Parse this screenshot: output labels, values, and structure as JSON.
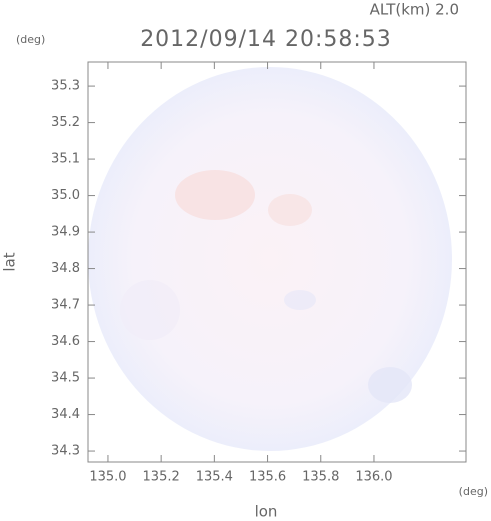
{
  "chart_data": {
    "type": "radar-map",
    "title": "2012/09/14 20:58:53",
    "altitude": "ALT(km) 2.0",
    "x_label": "lon",
    "y_label": "lat",
    "x_unit": "(deg)",
    "y_unit": "(deg)",
    "xlim": [
      134.925,
      136.346
    ],
    "ylim": [
      34.27,
      35.366
    ],
    "xticks": [
      {
        "value": 135.0,
        "label": "135.0"
      },
      {
        "value": 135.2,
        "label": "135.2"
      },
      {
        "value": 135.4,
        "label": "135.4"
      },
      {
        "value": 135.6,
        "label": "135.6"
      },
      {
        "value": 135.8,
        "label": "135.8"
      },
      {
        "value": 136.0,
        "label": "136.0"
      }
    ],
    "yticks": [
      34.3,
      34.4,
      34.5,
      34.6,
      34.7,
      34.8,
      34.9,
      {
        "value": 35.0,
        "label": "35.0"
      },
      35.1,
      35.2,
      35.3
    ]
  }
}
